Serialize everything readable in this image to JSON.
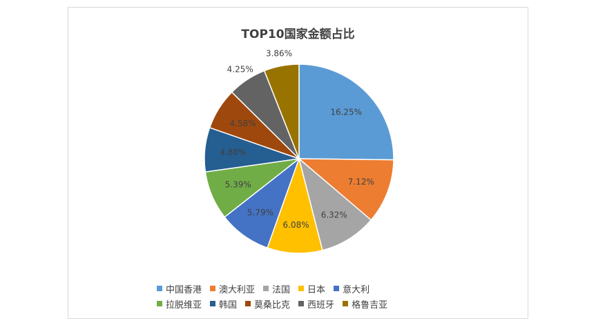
{
  "chart_data": {
    "type": "pie",
    "title": "TOP10国家金额占比",
    "legend_position": "bottom",
    "slices": [
      {
        "name": "中国香港",
        "value": 16.25,
        "label": "16.25%",
        "color": "#5b9bd5"
      },
      {
        "name": "澳大利亚",
        "value": 7.12,
        "label": "7.12%",
        "color": "#ed7d31"
      },
      {
        "name": "法国",
        "value": 6.32,
        "label": "6.32%",
        "color": "#a5a5a5"
      },
      {
        "name": "日本",
        "value": 6.08,
        "label": "6.08%",
        "color": "#ffc000"
      },
      {
        "name": "意大利",
        "value": 5.79,
        "label": "5.79%",
        "color": "#4472c4"
      },
      {
        "name": "拉脱维亚",
        "value": 5.39,
        "label": "5.39%",
        "color": "#70ad47"
      },
      {
        "name": "韩国",
        "value": 4.88,
        "label": "4.88%",
        "color": "#255e91"
      },
      {
        "name": "莫桑比克",
        "value": 4.58,
        "label": "4.58%",
        "color": "#9e480e"
      },
      {
        "name": "西班牙",
        "value": 4.25,
        "label": "4.25%",
        "color": "#636363"
      },
      {
        "name": "格鲁吉亚",
        "value": 3.86,
        "label": "3.86%",
        "color": "#997300"
      }
    ]
  }
}
